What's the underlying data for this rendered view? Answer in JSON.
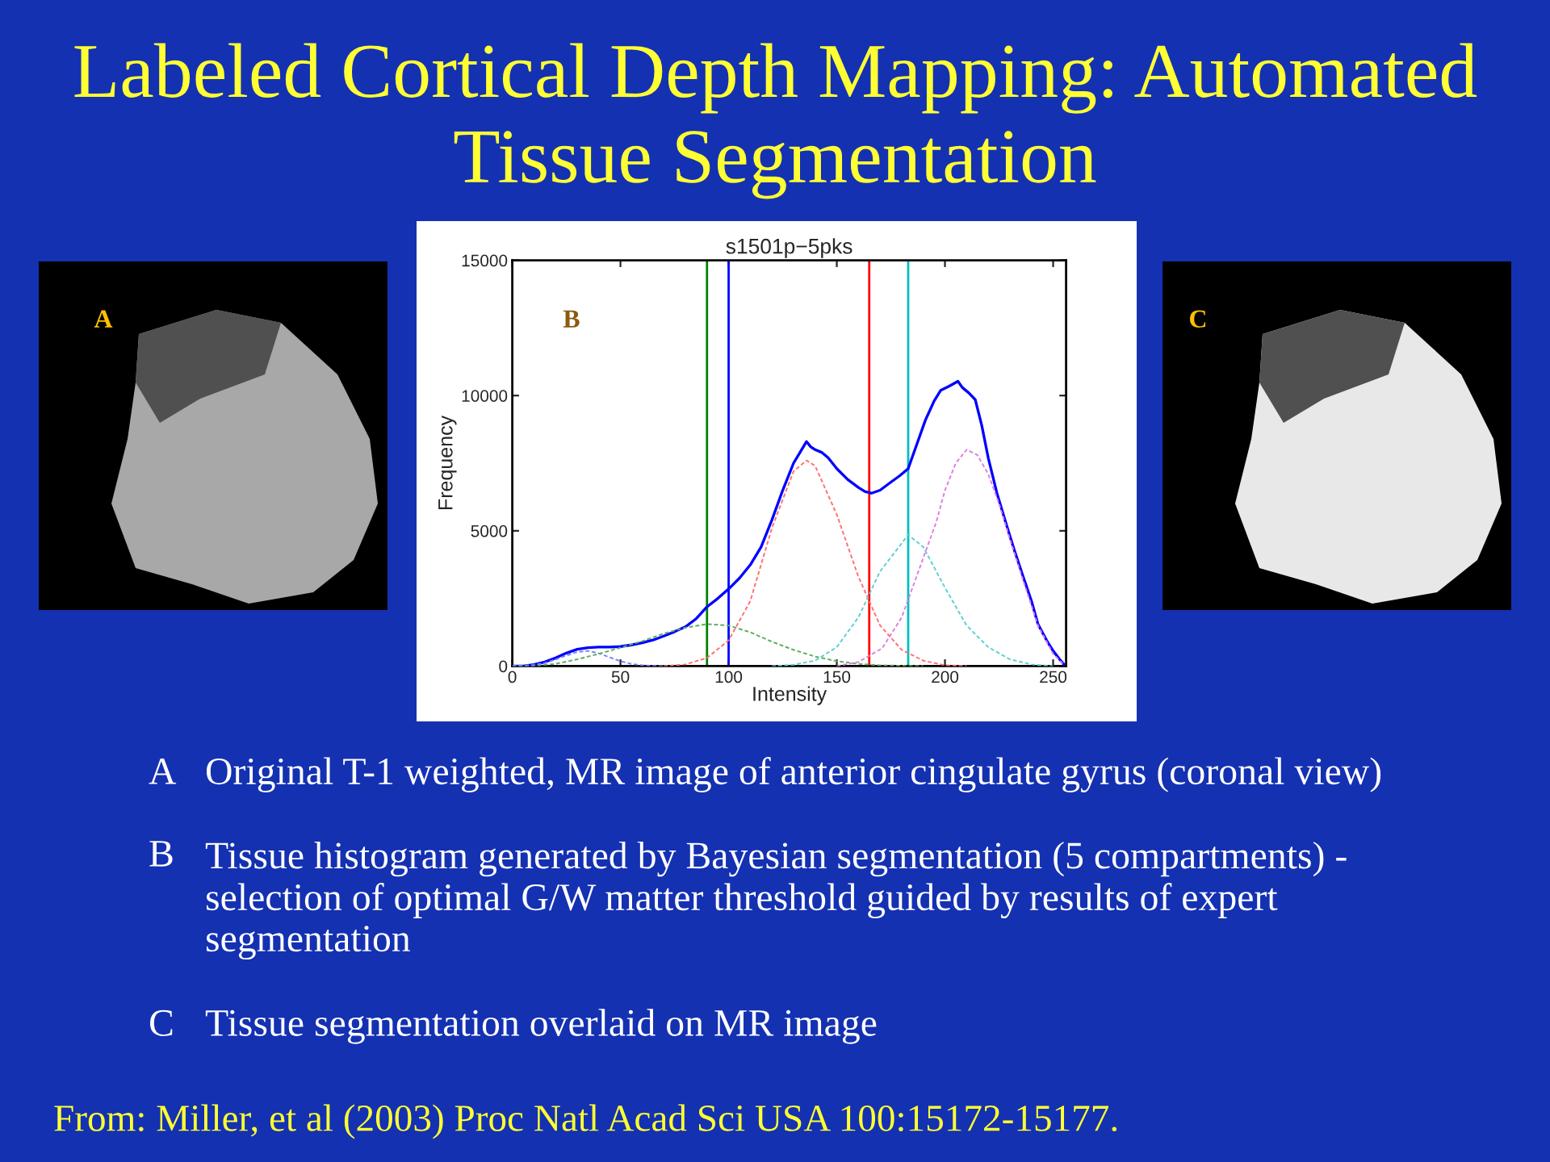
{
  "chart_data": {
    "type": "line",
    "title": "s1501p−5pks",
    "xlabel": "Intensity",
    "ylabel": "Frequency",
    "xlim": [
      0,
      256
    ],
    "ylim": [
      0,
      15000
    ],
    "xticks": [
      0,
      50,
      100,
      150,
      200,
      250
    ],
    "yticks": [
      0,
      5000,
      10000,
      15000
    ],
    "series": [
      {
        "color": "#0000ff",
        "x": [
          0,
          5,
          10,
          15,
          20,
          25,
          30,
          35,
          40,
          45,
          50,
          55,
          60,
          65,
          70,
          75,
          80,
          85,
          90,
          95,
          100,
          105,
          110,
          115,
          120,
          125,
          130,
          133,
          136,
          138,
          140,
          143,
          146,
          150,
          155,
          160,
          163,
          166,
          170,
          175,
          179,
          183,
          187,
          191,
          195,
          198,
          202,
          206,
          208,
          211,
          214,
          217,
          220,
          224,
          228,
          232,
          236,
          240,
          243,
          247,
          250,
          253,
          255
        ],
        "values": [
          0,
          0,
          50,
          150,
          300,
          480,
          620,
          680,
          700,
          700,
          720,
          780,
          860,
          960,
          1110,
          1270,
          1450,
          1750,
          2190,
          2500,
          2850,
          3250,
          3740,
          4400,
          5400,
          6500,
          7500,
          7900,
          8300,
          8100,
          8000,
          7900,
          7700,
          7300,
          6900,
          6600,
          6450,
          6390,
          6500,
          6800,
          7030,
          7300,
          8200,
          9100,
          9800,
          10190,
          10350,
          10530,
          10300,
          10100,
          9850,
          8900,
          7700,
          6400,
          5330,
          4300,
          3340,
          2400,
          1550,
          950,
          560,
          250,
          60
        ]
      },
      {
        "color": "#7f7fff",
        "line_style": "dashed",
        "x": [
          0,
          10,
          15,
          20,
          25,
          30,
          35,
          40,
          45,
          50,
          55,
          60,
          65,
          70
        ],
        "values": [
          0,
          40,
          110,
          240,
          390,
          520,
          560,
          470,
          320,
          180,
          80,
          30,
          10,
          0
        ]
      },
      {
        "color": "#5fae5f",
        "line_style": "dashed",
        "x": [
          0,
          10,
          20,
          30,
          40,
          50,
          60,
          70,
          80,
          90,
          100,
          110,
          120,
          130,
          140,
          150,
          160,
          170,
          180,
          190
        ],
        "values": [
          0,
          10,
          80,
          250,
          450,
          680,
          920,
          1200,
          1420,
          1550,
          1500,
          1250,
          900,
          600,
          350,
          180,
          80,
          30,
          10,
          0
        ]
      },
      {
        "color": "#ff7070",
        "line_style": "dashed",
        "x": [
          70,
          80,
          90,
          100,
          110,
          120,
          130,
          136,
          140,
          150,
          160,
          170,
          180,
          190,
          200,
          210
        ],
        "values": [
          0,
          60,
          300,
          950,
          2400,
          5100,
          7200,
          7600,
          7400,
          5600,
          3300,
          1500,
          600,
          200,
          30,
          0
        ]
      },
      {
        "color": "#5fcfcf",
        "line_style": "dashed",
        "x": [
          120,
          130,
          140,
          150,
          160,
          170,
          183,
          190,
          200,
          210,
          220,
          230,
          240,
          250
        ],
        "values": [
          0,
          50,
          200,
          700,
          1800,
          3500,
          4850,
          4400,
          2900,
          1500,
          700,
          250,
          60,
          0
        ]
      },
      {
        "color": "#df7fdf",
        "line_style": "dashed",
        "x": [
          150,
          160,
          171,
          180,
          190,
          196,
          200,
          205,
          210,
          215,
          220,
          225,
          230,
          236,
          243,
          250,
          255
        ],
        "values": [
          0,
          150,
          660,
          1800,
          4000,
          5330,
          6500,
          7500,
          8000,
          7800,
          7100,
          6000,
          4700,
          3200,
          1500,
          450,
          50
        ]
      }
    ],
    "ref_lines": [
      {
        "axis": "x",
        "value": 90,
        "color": "#008000"
      },
      {
        "axis": "x",
        "value": 100,
        "color": "#0000ff"
      },
      {
        "axis": "x",
        "value": 165,
        "color": "#ff0000"
      },
      {
        "axis": "x",
        "value": 183,
        "color": "#00bfbf"
      }
    ],
    "annotations": [
      "Labeled Cortical Depth Mapping: Automated\nTissue Segmentation",
      "A",
      "B",
      "C",
      "A",
      "Original T-1 weighted, MR image of anterior cingulate gyrus (coronal view)",
      "B",
      "Tissue histogram generated by Bayesian segmentation (5 compartments) -\nselection of optimal G/W matter threshold guided by results of expert\nsegmentation",
      "C",
      "Tissue segmentation overlaid on MR image",
      "From: Miller, et al (2003) Proc Natl Acad Sci USA 100:15172-15177."
    ]
  }
}
